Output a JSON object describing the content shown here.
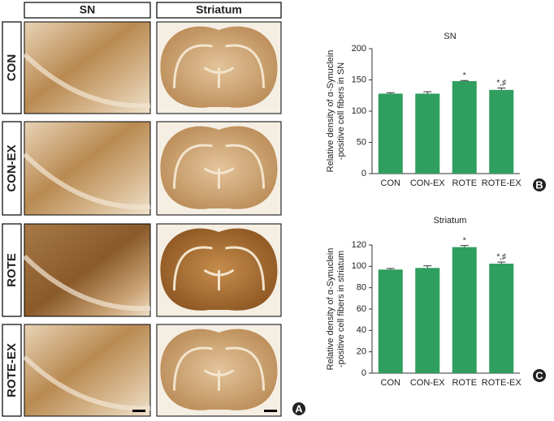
{
  "figure": {
    "columns": [
      "SN",
      "Striatum"
    ],
    "rows": [
      "CON",
      "CON-EX",
      "ROTE",
      "ROTE-EX"
    ],
    "panel_label": "A"
  },
  "chart_data": [
    {
      "type": "bar",
      "title": "SN",
      "panel": "B",
      "y_label": [
        "Relative density of α-Synuclein",
        "-positive cell fibers in SN"
      ],
      "categories": [
        "CON",
        "CON-EX",
        "ROTE",
        "ROTE-EX"
      ],
      "values": [
        128,
        128,
        148,
        134
      ],
      "errors": [
        1.5,
        3,
        1,
        3
      ],
      "bar_labels": [
        null,
        null,
        "*",
        "*,♯"
      ],
      "color": "#2f9e5e",
      "ylim": [
        0,
        200
      ],
      "yticks": [
        0,
        50,
        100,
        150,
        200
      ]
    },
    {
      "type": "bar",
      "title": "Striatum",
      "panel": "C",
      "y_label": [
        "Relative density of α-Synuclein",
        "-positive cell fibers in striatum"
      ],
      "categories": [
        "CON",
        "CON-EX",
        "ROTE",
        "ROTE-EX"
      ],
      "values": [
        97,
        98.5,
        118,
        102.5
      ],
      "errors": [
        1,
        2,
        1.5,
        1.5
      ],
      "bar_labels": [
        null,
        null,
        "*",
        "*,♯"
      ],
      "color": "#2f9e5e",
      "ylim": [
        0,
        120
      ],
      "yticks": [
        0,
        20,
        40,
        60,
        80,
        100,
        120
      ]
    }
  ]
}
